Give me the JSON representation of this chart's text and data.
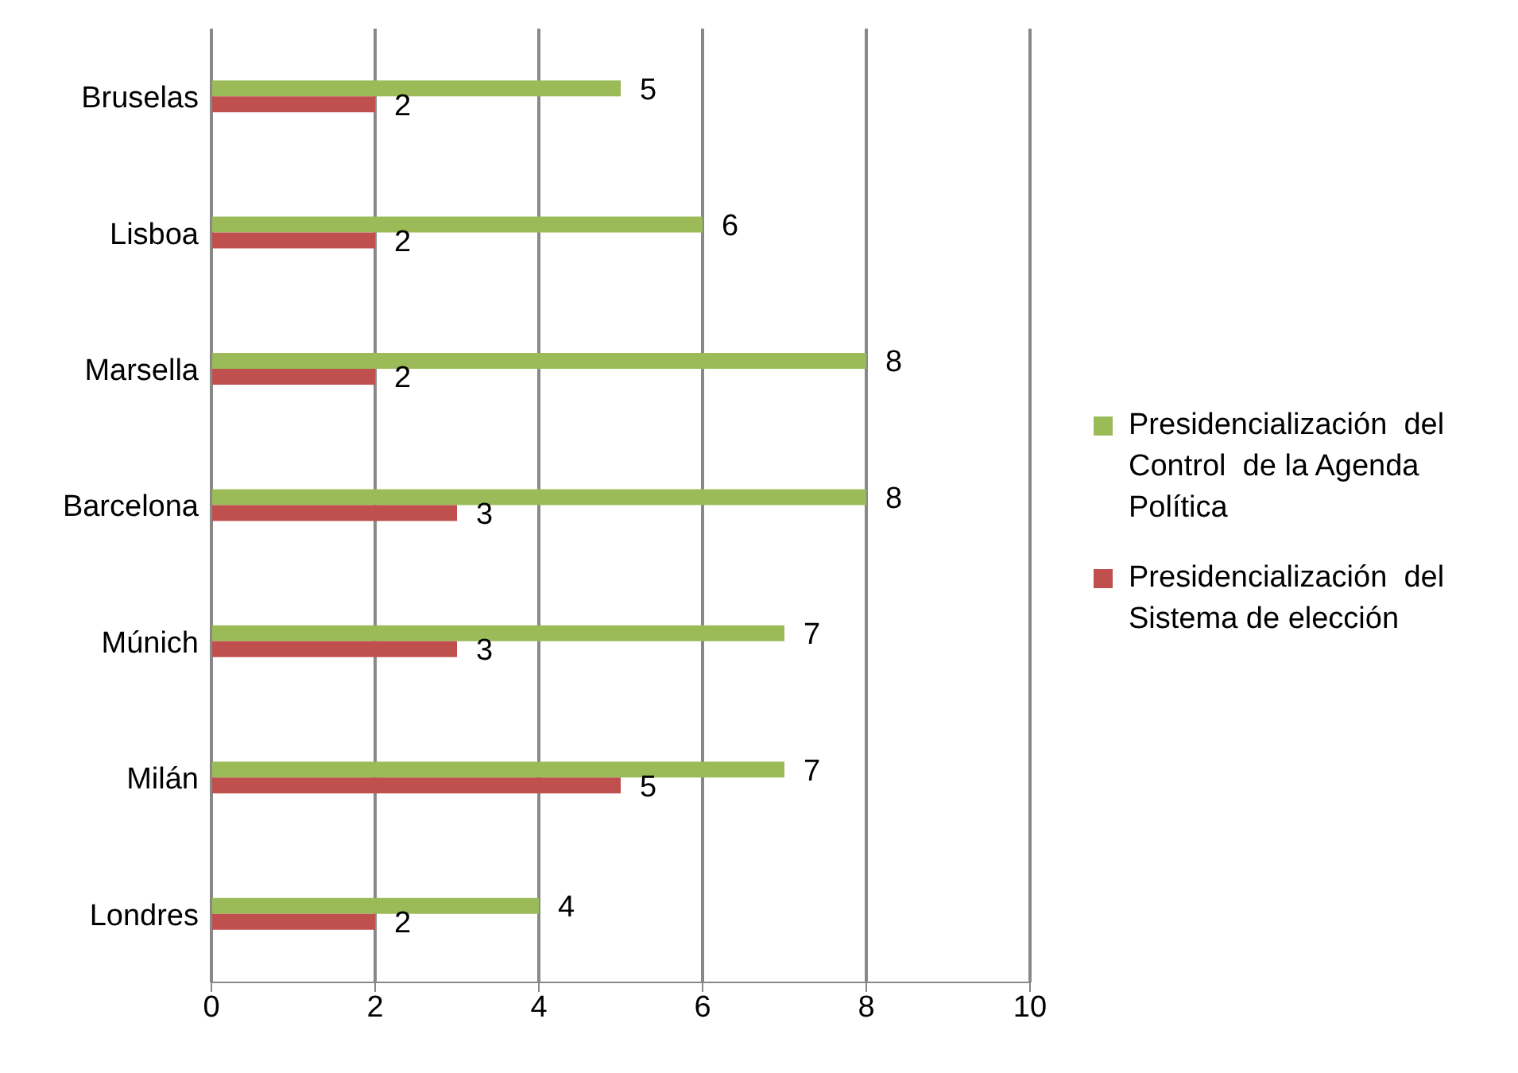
{
  "chart_data": {
    "type": "bar",
    "orientation": "horizontal",
    "categories": [
      "Bruselas",
      "Lisboa",
      "Marsella",
      "Barcelona",
      "Múnich",
      "Milán",
      "Londres"
    ],
    "series": [
      {
        "name": "Presidencialización  del Control  de la Agenda Política",
        "color": "#9bbb59",
        "values": [
          5,
          6,
          8,
          8,
          7,
          7,
          4
        ]
      },
      {
        "name": "Presidencialización  del Sistema de elección",
        "color": "#c0504d",
        "values": [
          2,
          2,
          2,
          3,
          3,
          5,
          2
        ]
      }
    ],
    "xlim": [
      0,
      10
    ],
    "xticks": [
      0,
      2,
      4,
      6,
      8,
      10
    ],
    "grid": "x",
    "legend": "right",
    "data_labels": true
  }
}
